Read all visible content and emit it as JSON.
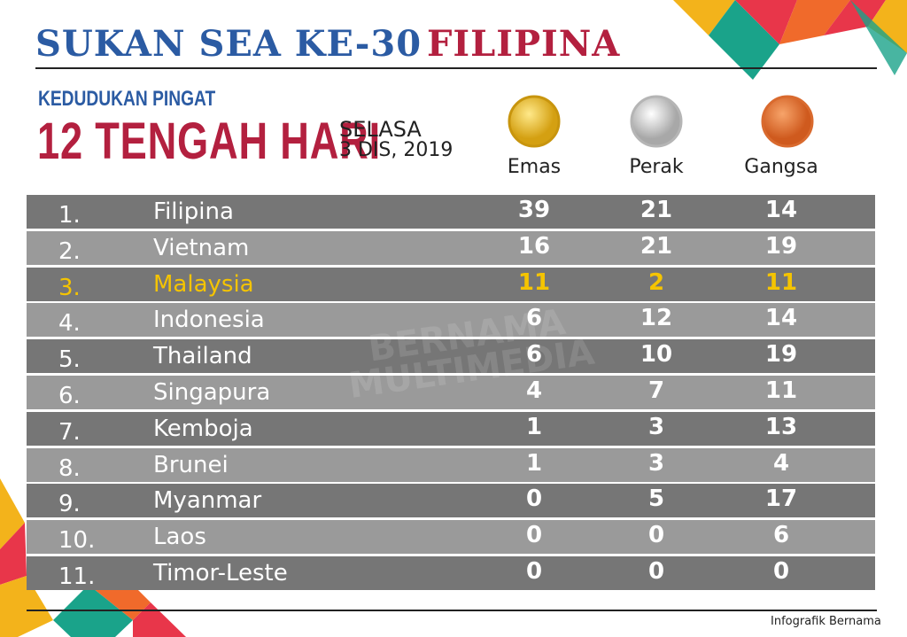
{
  "header": {
    "title_event": "SUKAN SEA KE-30",
    "title_host": "FILIPINA"
  },
  "subheader": {
    "label": "KEDUDUKAN PINGAT",
    "time": "12 TENGAH HARI",
    "day": "SELASA",
    "date": "3 DIS, 2019"
  },
  "table": {
    "columns": [
      "Emas",
      "Perak",
      "Gangsa"
    ],
    "rows": [
      [
        "1.",
        "Filipina",
        39,
        21,
        14
      ],
      [
        "2.",
        "Vietnam",
        16,
        21,
        19
      ],
      [
        "3.",
        "Malaysia",
        11,
        2,
        11
      ],
      [
        "4.",
        "Indonesia",
        6,
        12,
        14
      ],
      [
        "5.",
        "Thailand",
        6,
        10,
        19
      ],
      [
        "6.",
        "Singapura",
        4,
        7,
        11
      ],
      [
        "7.",
        "Kemboja",
        1,
        3,
        13
      ],
      [
        "8.",
        "Brunei",
        1,
        3,
        4
      ],
      [
        "9.",
        "Myanmar",
        0,
        5,
        17
      ],
      [
        "10.",
        "Laos",
        0,
        0,
        6
      ],
      [
        "11.",
        "Timor-Leste",
        0,
        0,
        0
      ]
    ]
  },
  "watermark": {
    "line1": "BERNAMA",
    "line2": "MULTIMEDIA"
  },
  "footer": {
    "credit": "Infografik Bernama"
  }
}
